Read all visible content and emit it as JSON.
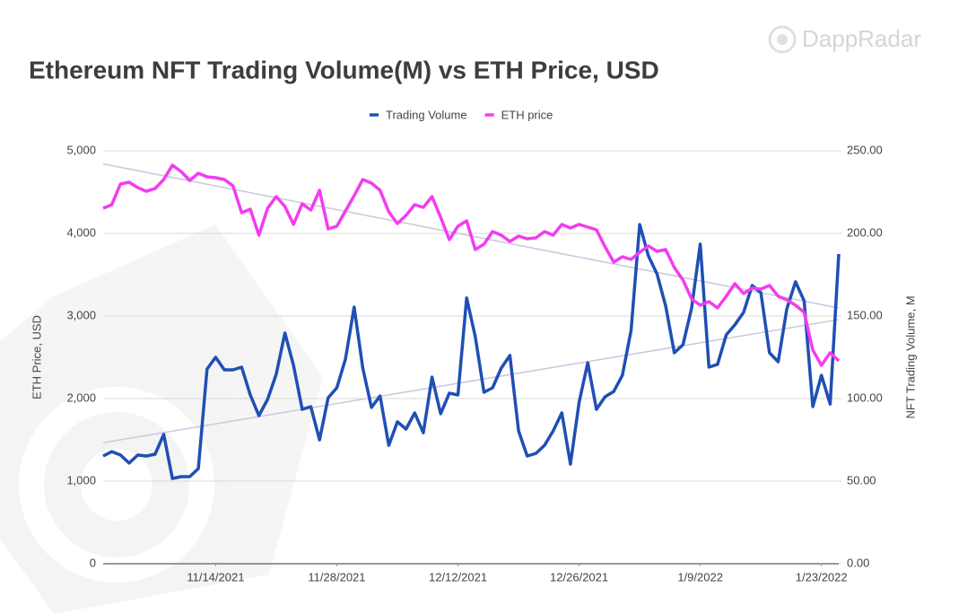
{
  "chart_data": {
    "type": "line",
    "title": "Ethereum NFT Trading Volume(M) vs ETH Price, USD",
    "watermark": "DappRadar",
    "y_label": "ETH Price, USD",
    "y2_label": "NFT Trading Volume, M",
    "legend": "top",
    "grid": true,
    "x": [
      "2021-11-01",
      "2021-11-02",
      "2021-11-03",
      "2021-11-04",
      "2021-11-05",
      "2021-11-06",
      "2021-11-07",
      "2021-11-08",
      "2021-11-09",
      "2021-11-10",
      "2021-11-11",
      "2021-11-12",
      "2021-11-13",
      "2021-11-14",
      "2021-11-15",
      "2021-11-16",
      "2021-11-17",
      "2021-11-18",
      "2021-11-19",
      "2021-11-20",
      "2021-11-21",
      "2021-11-22",
      "2021-11-23",
      "2021-11-24",
      "2021-11-25",
      "2021-11-26",
      "2021-11-27",
      "2021-11-28",
      "2021-11-29",
      "2021-11-30",
      "2021-12-01",
      "2021-12-02",
      "2021-12-03",
      "2021-12-04",
      "2021-12-05",
      "2021-12-06",
      "2021-12-07",
      "2021-12-08",
      "2021-12-09",
      "2021-12-10",
      "2021-12-11",
      "2021-12-12",
      "2021-12-13",
      "2021-12-14",
      "2021-12-15",
      "2021-12-16",
      "2021-12-17",
      "2021-12-18",
      "2021-12-19",
      "2021-12-20",
      "2021-12-21",
      "2021-12-22",
      "2021-12-23",
      "2021-12-24",
      "2021-12-25",
      "2021-12-26",
      "2021-12-27",
      "2021-12-28",
      "2021-12-29",
      "2021-12-30",
      "2021-12-31",
      "2022-01-01",
      "2022-01-02",
      "2022-01-03",
      "2022-01-04",
      "2022-01-05",
      "2022-01-06",
      "2022-01-07",
      "2022-01-08",
      "2022-01-09",
      "2022-01-10",
      "2022-01-11",
      "2022-01-12",
      "2022-01-13",
      "2022-01-14",
      "2022-01-15",
      "2022-01-16",
      "2022-01-17",
      "2022-01-18",
      "2022-01-19",
      "2022-01-20",
      "2022-01-21",
      "2022-01-22",
      "2022-01-23",
      "2022-01-24",
      "2022-01-25"
    ],
    "xlim": [
      "2021-11-01",
      "2022-01-25"
    ],
    "xticks": [
      {
        "value": "2021-11-14",
        "label": "11/14/2021"
      },
      {
        "value": "2021-11-28",
        "label": "11/28/2021"
      },
      {
        "value": "2021-12-12",
        "label": "12/12/2021"
      },
      {
        "value": "2021-12-26",
        "label": "12/26/2021"
      },
      {
        "value": "2022-01-09",
        "label": "1/9/2022"
      },
      {
        "value": "2022-01-23",
        "label": "1/23/2022"
      }
    ],
    "ylim": [
      0,
      5000
    ],
    "yticks": [
      0,
      {
        "value": 1000,
        "label": "1,000"
      },
      {
        "value": 2000,
        "label": "2,000"
      },
      {
        "value": 3000,
        "label": "3,000"
      },
      {
        "value": 4000,
        "label": "4,000"
      },
      {
        "value": 5000,
        "label": "5,000"
      }
    ],
    "y2lim": [
      0,
      250
    ],
    "y2ticks": [
      {
        "value": 0,
        "label": "0.00"
      },
      {
        "value": 50,
        "label": "50.00"
      },
      {
        "value": 100,
        "label": "100.00"
      },
      {
        "value": 150,
        "label": "150.00"
      },
      {
        "value": 200,
        "label": "200.00"
      },
      {
        "value": 250,
        "label": "250.00"
      }
    ],
    "trendline_color": "#cbc7df",
    "series": [
      {
        "name": "Trading Volume",
        "color": "#1f4fb5",
        "axis": "y2",
        "trendline": true,
        "values": [
          65.2,
          67.9,
          65.8,
          60.9,
          65.8,
          65.2,
          66.3,
          78.3,
          51.6,
          52.7,
          52.7,
          57.6,
          117.9,
          125.0,
          117.4,
          117.4,
          119.0,
          102.2,
          89.7,
          99.5,
          114.7,
          139.7,
          120.1,
          93.5,
          95.1,
          75.0,
          100.5,
          106.5,
          123.9,
          155.4,
          118.5,
          94.6,
          101.6,
          71.7,
          85.9,
          81.5,
          91.3,
          79.3,
          113.0,
          90.8,
          103.3,
          102.2,
          160.9,
          137.5,
          103.8,
          106.5,
          118.5,
          126.1,
          80.4,
          65.2,
          66.8,
          71.7,
          80.4,
          91.3,
          60.3,
          97.8,
          121.7,
          93.5,
          101.1,
          104.3,
          114.1,
          141.3,
          205.4,
          186.4,
          175.5,
          156.0,
          127.7,
          132.6,
          154.9,
          193.5,
          119.0,
          120.7,
          138.6,
          144.6,
          152.2,
          168.5,
          164.1,
          127.7,
          122.3,
          154.3,
          170.7,
          159.2,
          95.1,
          114.1,
          96.7,
          187.5
        ]
      },
      {
        "name": "ETH price",
        "color": "#f23cf0",
        "axis": "y",
        "trendline": true,
        "values": [
          4304,
          4348,
          4598,
          4620,
          4554,
          4510,
          4543,
          4652,
          4826,
          4750,
          4641,
          4728,
          4685,
          4674,
          4652,
          4576,
          4250,
          4293,
          3978,
          4304,
          4446,
          4326,
          4109,
          4359,
          4283,
          4522,
          4054,
          4087,
          4272,
          4457,
          4652,
          4609,
          4522,
          4261,
          4120,
          4217,
          4348,
          4315,
          4446,
          4196,
          3924,
          4087,
          4152,
          3804,
          3870,
          4022,
          3978,
          3902,
          3967,
          3935,
          3946,
          4022,
          3978,
          4109,
          4065,
          4109,
          4076,
          4043,
          3837,
          3652,
          3717,
          3685,
          3772,
          3848,
          3783,
          3804,
          3587,
          3435,
          3207,
          3130,
          3174,
          3098,
          3239,
          3391,
          3272,
          3337,
          3326,
          3370,
          3239,
          3196,
          3130,
          3043,
          2587,
          2402,
          2554,
          2457
        ]
      }
    ]
  }
}
